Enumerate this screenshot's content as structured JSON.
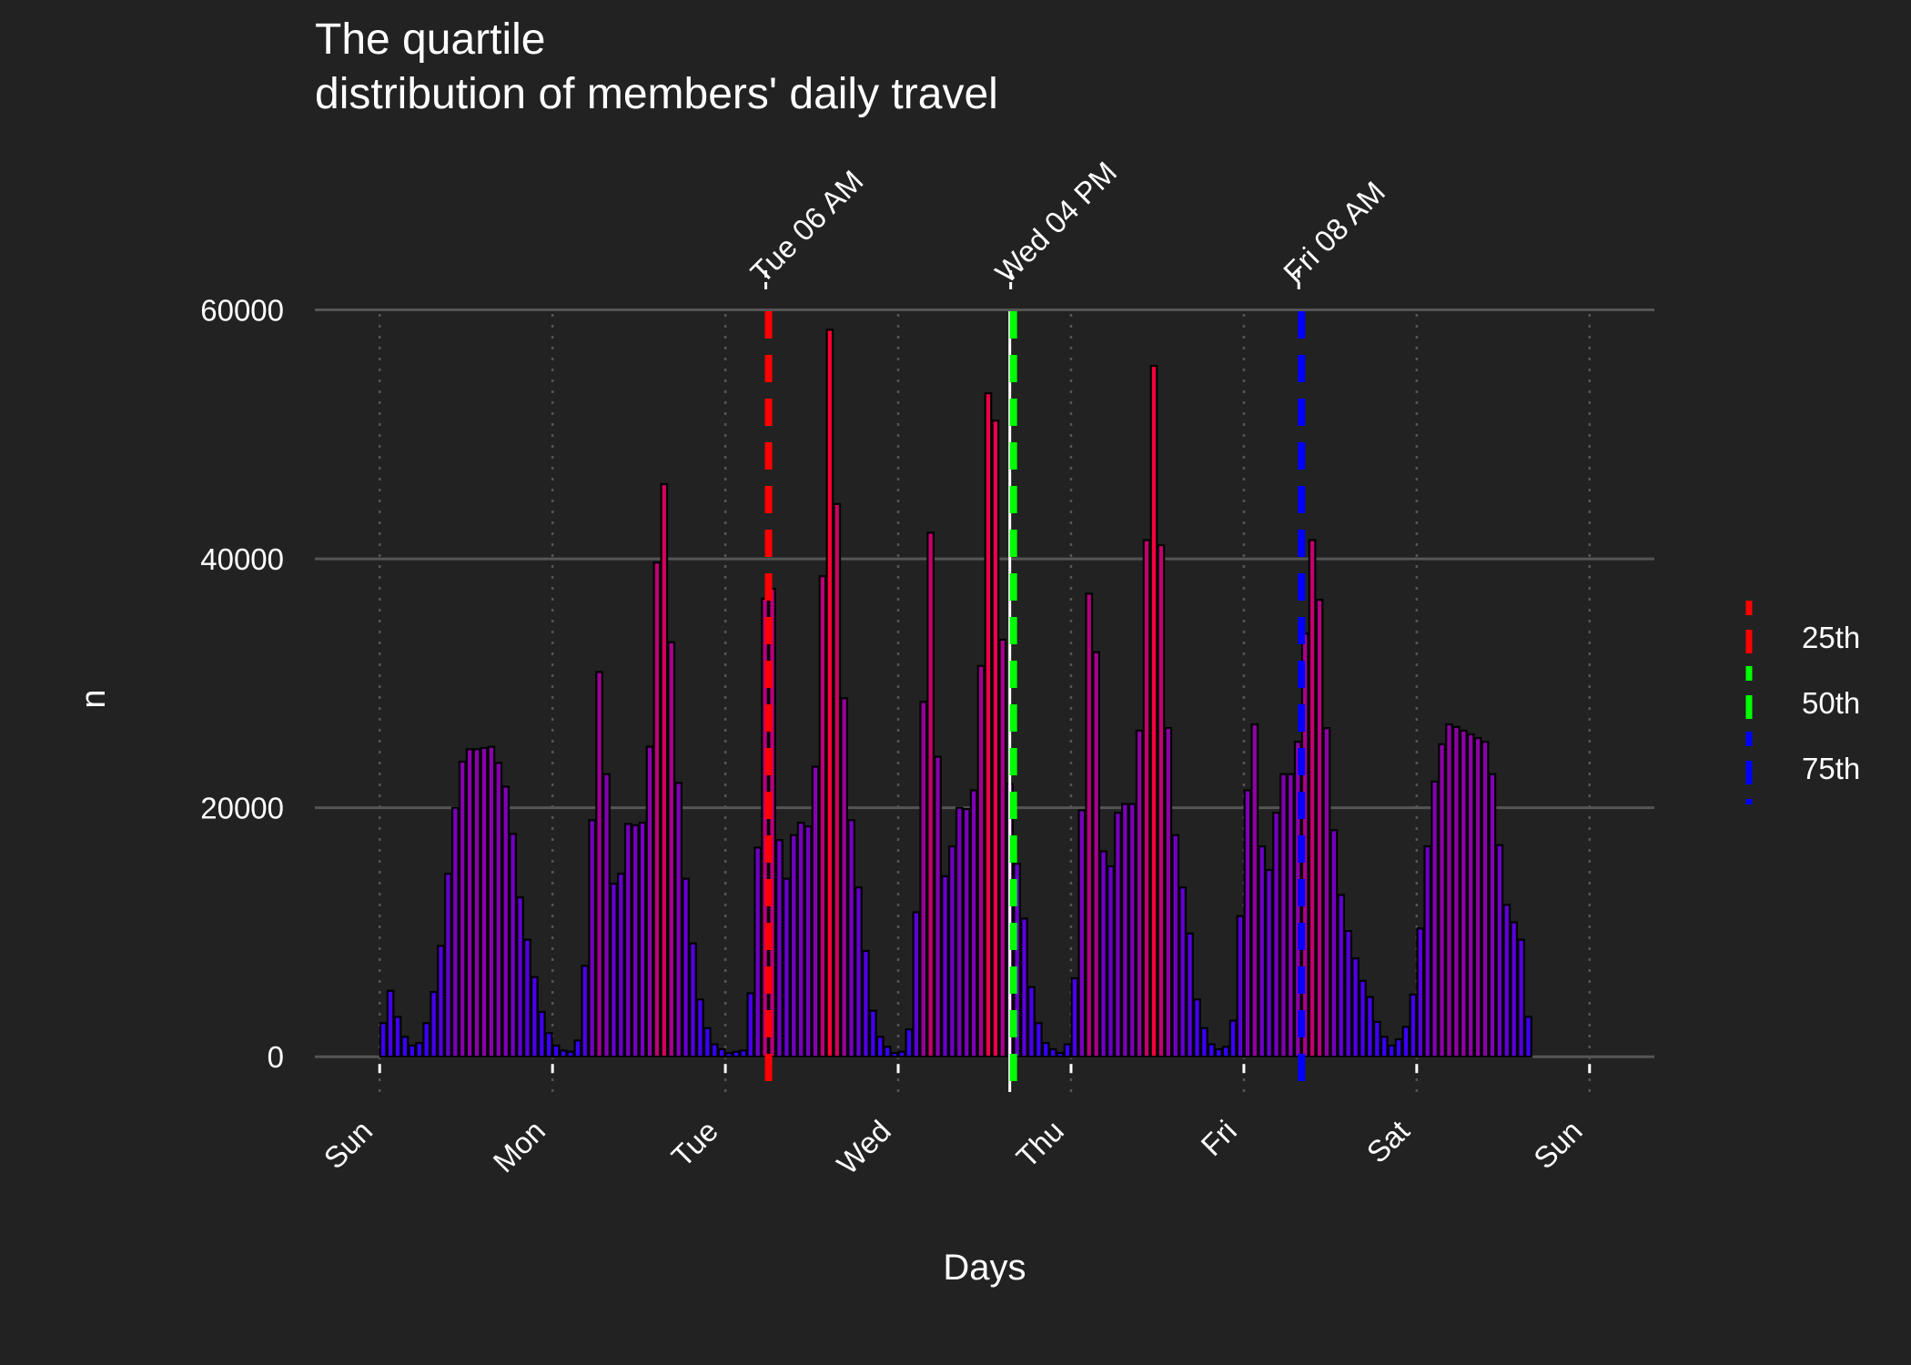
{
  "chart_data": {
    "type": "bar",
    "title": "The quartile",
    "subtitle": "distribution of members' daily travel",
    "xlabel": "Days",
    "ylabel": "n",
    "x_unit": "hour of week (0 = Sunday 00:00)",
    "xlim": [
      -9,
      177
    ],
    "ylim": [
      -3200,
      61500
    ],
    "grid": true,
    "x_ticks": [
      {
        "label": "Sun",
        "x": 0
      },
      {
        "label": "Mon",
        "x": 24
      },
      {
        "label": "Tue",
        "x": 48
      },
      {
        "label": "Wed",
        "x": 72
      },
      {
        "label": "Thu",
        "x": 96
      },
      {
        "label": "Fri",
        "x": 120
      },
      {
        "label": "Sat",
        "x": 144
      },
      {
        "label": "Sun",
        "x": 168
      }
    ],
    "y_ticks": [
      0,
      20000,
      40000,
      60000
    ],
    "bars": {
      "start_hour": 0,
      "values": [
        2700,
        5300,
        3200,
        1600,
        900,
        1100,
        2700,
        5200,
        8900,
        14700,
        20000,
        23700,
        24700,
        24700,
        24800,
        24900,
        23600,
        21700,
        17900,
        12800,
        9400,
        6400,
        3600,
        1900,
        900,
        500,
        400,
        1300,
        7300,
        19000,
        30900,
        22700,
        13900,
        14700,
        18700,
        18600,
        18800,
        24900,
        39700,
        46000,
        33300,
        22000,
        14300,
        9100,
        4600,
        2300,
        1000,
        600,
        300,
        400,
        500,
        5100,
        16800,
        36800,
        37600,
        17400,
        14300,
        17800,
        18800,
        18500,
        23300,
        38600,
        58400,
        44400,
        28800,
        19000,
        13600,
        8500,
        3700,
        1600,
        800,
        300,
        400,
        2200,
        11600,
        28500,
        42100,
        24100,
        14500,
        16900,
        20000,
        19900,
        21400,
        31400,
        53300,
        51100,
        33500,
        21900,
        15500,
        11100,
        5600,
        2700,
        1100,
        600,
        300,
        1000,
        6300,
        19800,
        37200,
        32500,
        16500,
        15300,
        19600,
        20300,
        20300,
        26200,
        41500,
        55500,
        41100,
        26400,
        17800,
        13600,
        9900,
        4600,
        2300,
        1000,
        600,
        800,
        2900,
        11300,
        21400,
        26700,
        16900,
        15000,
        19600,
        22700,
        22700,
        25300,
        34000,
        41500,
        36700,
        26400,
        18200,
        13000,
        10100,
        7900,
        6100,
        4800,
        2800,
        1600,
        900,
        1400,
        2400,
        5000,
        10300,
        16900,
        22100,
        25100,
        26700,
        26500,
        26200,
        25900,
        25600,
        25300,
        22700,
        17000,
        12200,
        10800,
        9400,
        3200
      ]
    },
    "quantile_lines": [
      {
        "name": "25th",
        "x": 54,
        "label": "Tue 06 AM",
        "color": "#FF0000"
      },
      {
        "name": "50th",
        "x": 88,
        "label": "Wed 04 PM",
        "color": "#00FF00"
      },
      {
        "name": "75th",
        "x": 128,
        "label": "Fri 08 AM",
        "color": "#0000FF"
      }
    ],
    "legend": {
      "position": "right",
      "entries": [
        "25th",
        "50th",
        "75th"
      ]
    },
    "colors": {
      "background": "#222222",
      "grid": "#555555",
      "text": "#FFFFFF",
      "low": "#3300FF",
      "high": "#FF0033",
      "bar_outline": "#000000"
    }
  }
}
